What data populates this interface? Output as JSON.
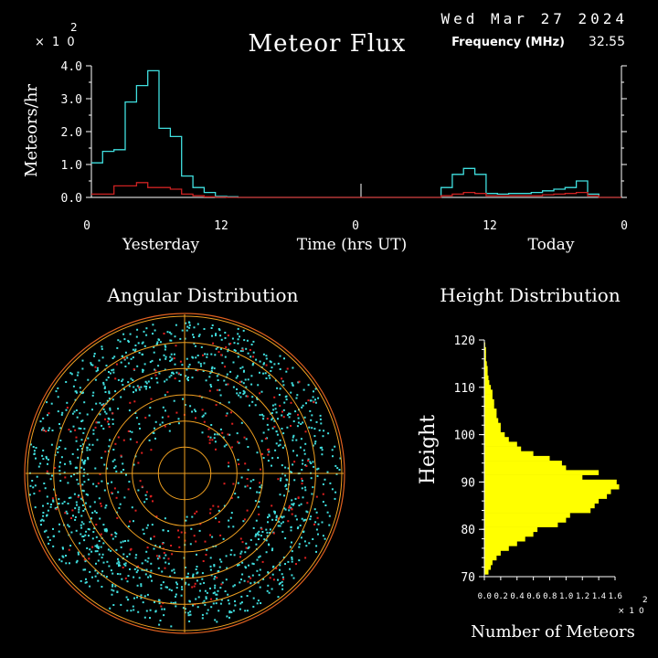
{
  "header": {
    "date": "Wed Mar 27 2024",
    "title": "Meteor Flux",
    "frequency_label": "Frequency (MHz)",
    "frequency_value": "32.55",
    "scale_prefix": "× 1 0",
    "scale_exp": "2"
  },
  "colors": {
    "background": "#000000",
    "axis": "#ffffff",
    "flux_line": "#40e0e0",
    "flux_secondary": "#cc2222",
    "grid_circle": "#f0a020",
    "dot_cyan": "#40e0e0",
    "dot_red": "#e02020",
    "histogram": "#ffff00"
  },
  "chart_data": [
    {
      "type": "line",
      "title": "Meteor Flux",
      "ylabel": "Meteors/hr",
      "xlabel": "Time (hrs UT)",
      "x_segment_labels": [
        "Yesterday",
        "Today"
      ],
      "xticks": [
        "0",
        "12",
        "0",
        "12",
        "0"
      ],
      "yticks": [
        "0.0",
        "1.0",
        "2.0",
        "3.0",
        "4.0"
      ],
      "y_scale_note": "× 10^2",
      "ylim": [
        0,
        4.0
      ],
      "xlim": [
        0,
        48
      ],
      "series": [
        {
          "role": "total",
          "color": "#40e0e0",
          "step": true,
          "values": [
            1.05,
            1.4,
            1.45,
            2.9,
            3.4,
            3.85,
            2.1,
            1.85,
            0.65,
            0.3,
            0.15,
            0.03,
            0.02,
            0.0,
            0.0,
            0.0,
            0.0,
            0.0,
            0.0,
            0.0,
            0.0,
            0.0,
            0.0,
            0.0,
            0.0,
            0.0,
            0.0,
            0.0,
            0.0,
            0.0,
            0.0,
            0.3,
            0.7,
            0.88,
            0.7,
            0.12,
            0.1,
            0.12,
            0.12,
            0.15,
            0.2,
            0.25,
            0.3,
            0.5,
            0.1
          ]
        },
        {
          "role": "secondary",
          "color": "#cc2222",
          "step": true,
          "values": [
            0.1,
            0.1,
            0.35,
            0.35,
            0.45,
            0.3,
            0.3,
            0.25,
            0.1,
            0.05,
            0.02,
            0.01,
            0.0,
            0.0,
            0.0,
            0.0,
            0.0,
            0.0,
            0.0,
            0.0,
            0.0,
            0.0,
            0.0,
            0.0,
            0.0,
            0.0,
            0.0,
            0.0,
            0.0,
            0.0,
            0.0,
            0.05,
            0.1,
            0.15,
            0.12,
            0.05,
            0.05,
            0.05,
            0.05,
            0.05,
            0.08,
            0.1,
            0.12,
            0.15,
            0.05
          ]
        }
      ]
    },
    {
      "type": "scatter",
      "title": "Angular Distribution",
      "projection": "polar",
      "rings": 6,
      "series": [
        {
          "name": "",
          "color": "#40e0e0",
          "count": 1400
        },
        {
          "name": "",
          "color": "#e02020",
          "count": 240
        }
      ]
    },
    {
      "type": "bar",
      "orientation": "horizontal",
      "title": "Height Distribution",
      "ylabel": "Height",
      "xlabel": "Number of Meteors",
      "x_scale_note": "× 10^2",
      "yticks": [
        "70",
        "80",
        "90",
        "100",
        "110",
        "120"
      ],
      "ylim": [
        70,
        120
      ],
      "xlim": [
        0,
        1.6
      ],
      "xticks": [
        "0.0",
        "0.2",
        "0.4",
        "0.6",
        "0.8",
        "1.0",
        "1.2",
        "1.4",
        "1.6"
      ],
      "bin_heights": [
        71,
        72,
        73,
        74,
        75,
        76,
        77,
        78,
        79,
        80,
        81,
        82,
        83,
        84,
        85,
        86,
        87,
        88,
        89,
        90,
        91,
        92,
        93,
        94,
        95,
        96,
        97,
        98,
        99,
        100,
        101,
        102,
        103,
        104,
        105,
        106,
        107,
        108,
        109,
        110,
        111,
        112,
        113,
        114,
        115,
        116,
        117,
        118,
        119
      ],
      "values": [
        0.05,
        0.08,
        0.1,
        0.15,
        0.2,
        0.3,
        0.4,
        0.5,
        0.6,
        0.65,
        0.9,
        1.0,
        1.05,
        1.3,
        1.35,
        1.4,
        1.5,
        1.55,
        1.65,
        1.62,
        1.2,
        1.4,
        1.0,
        0.95,
        0.8,
        0.6,
        0.45,
        0.4,
        0.3,
        0.25,
        0.2,
        0.2,
        0.17,
        0.15,
        0.15,
        0.12,
        0.12,
        0.1,
        0.1,
        0.08,
        0.06,
        0.05,
        0.04,
        0.04,
        0.03,
        0.02,
        0.02,
        0.02,
        0.01
      ]
    }
  ]
}
